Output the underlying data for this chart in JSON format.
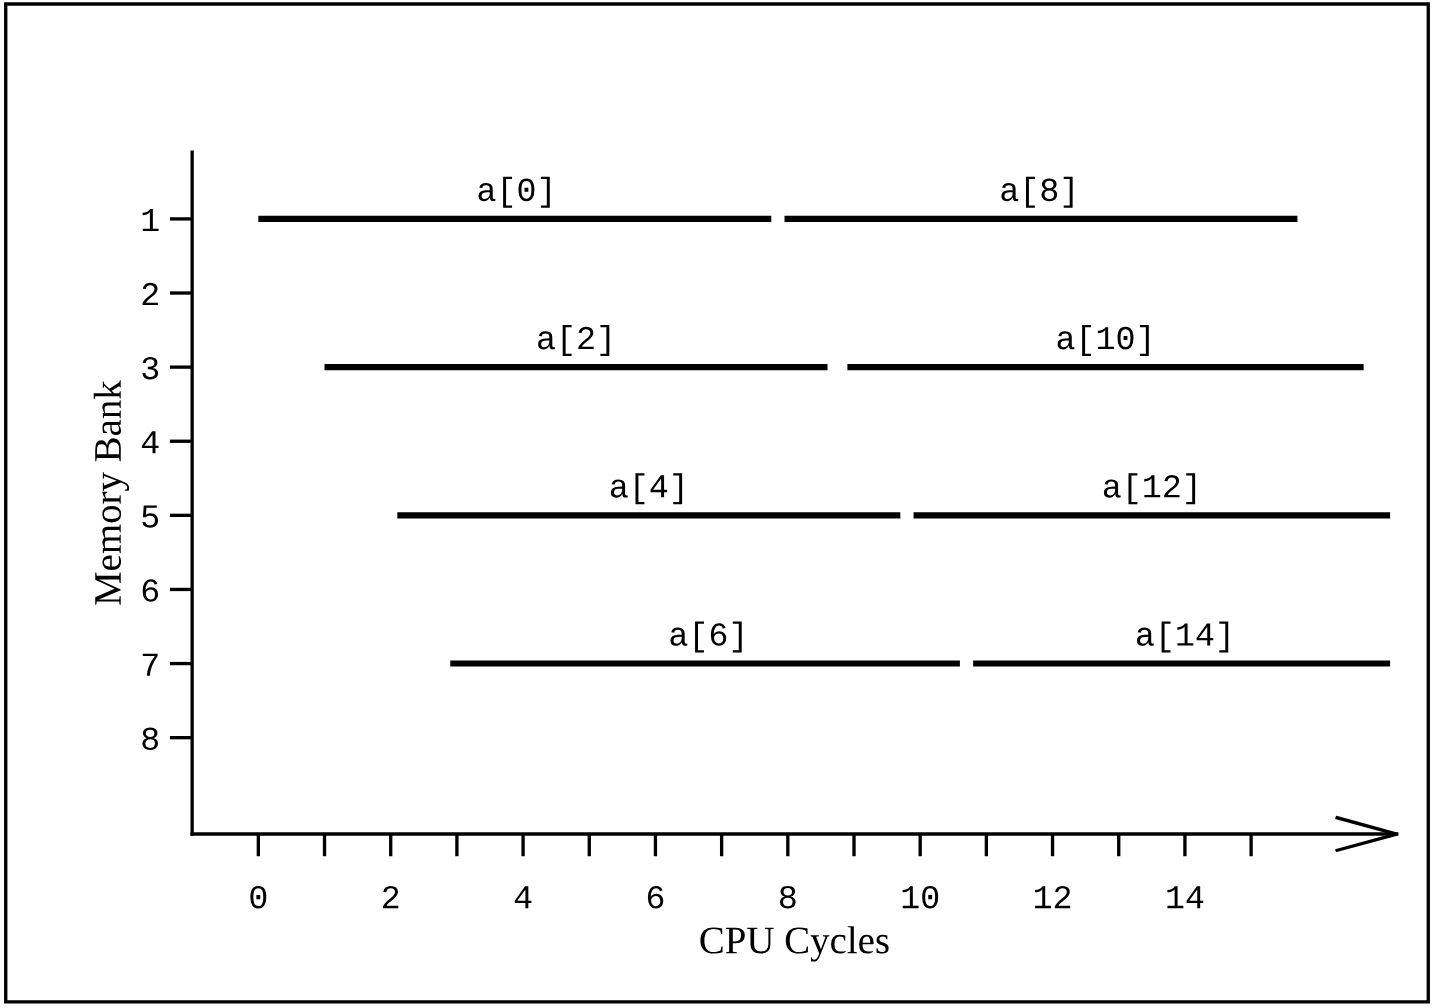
{
  "chart_data": {
    "type": "line",
    "xlabel": "CPU Cycles",
    "ylabel": "Memory Bank",
    "series": [
      {
        "color": "#000000",
        "x": [
          0,
          7.75
        ],
        "values": [
          1,
          1
        ]
      },
      {
        "color": "#000000",
        "x": [
          7.95,
          15.7
        ],
        "values": [
          1,
          1
        ]
      },
      {
        "color": "#000000",
        "x": [
          1,
          8.6
        ],
        "values": [
          3,
          3
        ]
      },
      {
        "color": "#000000",
        "x": [
          8.9,
          16.7
        ],
        "values": [
          3,
          3
        ]
      },
      {
        "color": "#000000",
        "x": [
          2.1,
          9.7
        ],
        "values": [
          5,
          5
        ]
      },
      {
        "color": "#000000",
        "x": [
          9.9,
          17.1
        ],
        "values": [
          5,
          5
        ]
      },
      {
        "color": "#000000",
        "x": [
          2.9,
          10.6
        ],
        "values": [
          7,
          7
        ]
      },
      {
        "color": "#000000",
        "x": [
          10.8,
          17.1
        ],
        "values": [
          7,
          7
        ]
      }
    ],
    "annotations": [
      {
        "text": "a[0]",
        "x": 3.9,
        "y": 1
      },
      {
        "text": "a[8]",
        "x": 11.8,
        "y": 1
      },
      {
        "text": "a[2]",
        "x": 4.8,
        "y": 3
      },
      {
        "text": "a[10]",
        "x": 12.8,
        "y": 3
      },
      {
        "text": "a[4]",
        "x": 5.9,
        "y": 5
      },
      {
        "text": "a[12]",
        "x": 13.5,
        "y": 5
      },
      {
        "text": "a[6]",
        "x": 6.8,
        "y": 7
      },
      {
        "text": "a[14]",
        "x": 14.0,
        "y": 7
      }
    ],
    "xlim": [
      -1,
      17.2
    ],
    "ylim": [
      9.3,
      0.1
    ],
    "xticks": [
      0,
      {
        "value": 1,
        "label": null
      },
      2,
      {
        "value": 3,
        "label": null
      },
      4,
      {
        "value": 5,
        "label": null
      },
      6,
      {
        "value": 7,
        "label": null
      },
      8,
      {
        "value": 9,
        "label": null
      },
      10,
      {
        "value": 11,
        "label": null
      },
      12,
      {
        "value": 13,
        "label": null
      },
      14,
      {
        "value": 15,
        "label": null
      }
    ],
    "yticks": [
      1,
      2,
      3,
      4,
      5,
      6,
      7,
      8
    ],
    "grid": false,
    "legend": false,
    "marker": "none",
    "line_style": "solid"
  }
}
